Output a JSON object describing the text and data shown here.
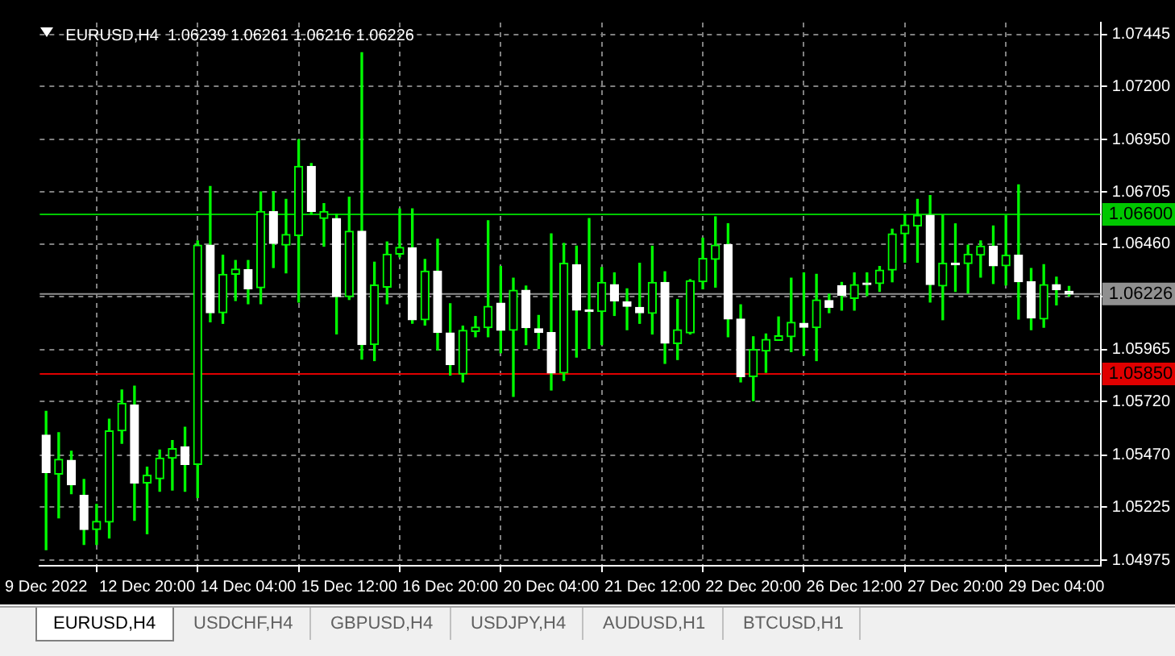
{
  "chart_data": {
    "type": "candlestick",
    "title": "EURUSD,H4  1.06239 1.06261 1.06216 1.06226",
    "categories": [
      "9 Dec 2022",
      null,
      null,
      null,
      null,
      null,
      null,
      null,
      "12 Dec 20:00",
      null,
      null,
      null,
      null,
      null,
      null,
      null,
      "14 Dec 04:00",
      null,
      null,
      null,
      null,
      null,
      null,
      null,
      "15 Dec 12:00",
      null,
      null,
      null,
      null,
      null,
      null,
      null,
      "16 Dec 20:00",
      null,
      null,
      null,
      null,
      null,
      null,
      null,
      "20 Dec 04:00",
      null,
      null,
      null,
      null,
      null,
      null,
      null,
      "21 Dec 12:00",
      null,
      null,
      null,
      null,
      null,
      null,
      null,
      "22 Dec 20:00",
      null,
      null,
      null,
      null,
      null,
      null,
      null,
      "26 Dec 12:00",
      null,
      null,
      null,
      null,
      null,
      null,
      null,
      "27 Dec 20:00",
      null,
      null,
      null,
      null,
      null,
      null,
      null,
      "29 Dec 04:00",
      null
    ],
    "ohlc": [
      [
        1.05563,
        1.05675,
        1.05025,
        1.05388
      ],
      [
        1.0538,
        1.05575,
        1.05175,
        1.0545
      ],
      [
        1.05445,
        1.05488,
        1.05288,
        1.0533
      ],
      [
        1.0528,
        1.05355,
        1.0505,
        1.0512
      ],
      [
        1.0512,
        1.05238,
        1.0505,
        1.05158
      ],
      [
        1.05155,
        1.05638,
        1.0508,
        1.05583
      ],
      [
        1.05583,
        1.05775,
        1.05525,
        1.05713
      ],
      [
        1.05705,
        1.05793,
        1.05163,
        1.05338
      ],
      [
        1.05338,
        1.05413,
        1.051,
        1.05375
      ],
      [
        1.05358,
        1.05493,
        1.053,
        1.05455
      ],
      [
        1.05455,
        1.05538,
        1.05305,
        1.055
      ],
      [
        1.05508,
        1.056,
        1.053,
        1.05425
      ],
      [
        1.05425,
        1.06475,
        1.0527,
        1.06455
      ],
      [
        1.06455,
        1.0673,
        1.06095,
        1.06138
      ],
      [
        1.06138,
        1.06408,
        1.06088,
        1.06318
      ],
      [
        1.06318,
        1.06383,
        1.06195,
        1.06343
      ],
      [
        1.0634,
        1.06383,
        1.0618,
        1.0625
      ],
      [
        1.06255,
        1.06705,
        1.0618,
        1.06613
      ],
      [
        1.06613,
        1.06705,
        1.0635,
        1.06463
      ],
      [
        1.06455,
        1.0667,
        1.06325,
        1.06505
      ],
      [
        1.065,
        1.0695,
        1.06188,
        1.06825
      ],
      [
        1.06825,
        1.06838,
        1.066,
        1.06613
      ],
      [
        1.0658,
        1.0665,
        1.0645,
        1.06613
      ],
      [
        1.0658,
        1.066,
        1.06038,
        1.06213
      ],
      [
        1.06213,
        1.0668,
        1.062,
        1.0652
      ],
      [
        1.0652,
        1.07358,
        1.0592,
        1.05988
      ],
      [
        1.05988,
        1.06375,
        1.05913,
        1.06268
      ],
      [
        1.06258,
        1.0647,
        1.0618,
        1.06413
      ],
      [
        1.06413,
        1.06625,
        1.064,
        1.06445
      ],
      [
        1.06443,
        1.06625,
        1.06088,
        1.06105
      ],
      [
        1.06105,
        1.06388,
        1.0608,
        1.06333
      ],
      [
        1.06333,
        1.06483,
        1.05963,
        1.06045
      ],
      [
        1.06043,
        1.0618,
        1.05845,
        1.05895
      ],
      [
        1.0585,
        1.06075,
        1.05813,
        1.06055
      ],
      [
        1.0605,
        1.0612,
        1.06025,
        1.0607
      ],
      [
        1.06068,
        1.0657,
        1.06025,
        1.06168
      ],
      [
        1.06183,
        1.06355,
        1.0595,
        1.06055
      ],
      [
        1.06055,
        1.063,
        1.05745,
        1.06243
      ],
      [
        1.06243,
        1.06263,
        1.05988,
        1.06068
      ],
      [
        1.06063,
        1.06125,
        1.0597,
        1.06045
      ],
      [
        1.06045,
        1.06508,
        1.05775,
        1.05855
      ],
      [
        1.05855,
        1.06463,
        1.0582,
        1.0637
      ],
      [
        1.06363,
        1.0645,
        1.0593,
        1.0615
      ],
      [
        1.0615,
        1.0658,
        1.0597,
        1.06143
      ],
      [
        1.06143,
        1.0635,
        1.05988,
        1.0628
      ],
      [
        1.0627,
        1.06325,
        1.06125,
        1.06193
      ],
      [
        1.06188,
        1.0625,
        1.06058,
        1.06168
      ],
      [
        1.06163,
        1.0637,
        1.06088,
        1.06138
      ],
      [
        1.06135,
        1.0645,
        1.06038,
        1.0628
      ],
      [
        1.0628,
        1.0633,
        1.059,
        1.05995
      ],
      [
        1.05993,
        1.062,
        1.05918,
        1.06058
      ],
      [
        1.06043,
        1.06293,
        1.06038,
        1.06288
      ],
      [
        1.06283,
        1.06488,
        1.0625,
        1.06393
      ],
      [
        1.06388,
        1.06588,
        1.06258,
        1.06455
      ],
      [
        1.06458,
        1.06555,
        1.06025,
        1.06108
      ],
      [
        1.06108,
        1.06175,
        1.05813,
        1.05838
      ],
      [
        1.05838,
        1.06025,
        1.05725,
        1.05965
      ],
      [
        1.05958,
        1.06038,
        1.05858,
        1.06013
      ],
      [
        1.06008,
        1.06118,
        1.06008,
        1.0603
      ],
      [
        1.06025,
        1.063,
        1.05955,
        1.06093
      ],
      [
        1.06088,
        1.06325,
        1.05938,
        1.0607
      ],
      [
        1.06068,
        1.06318,
        1.05913,
        1.06198
      ],
      [
        1.06195,
        1.06225,
        1.06138,
        1.06163
      ],
      [
        1.06265,
        1.0628,
        1.0615,
        1.0622
      ],
      [
        1.06205,
        1.06325,
        1.0615,
        1.0627
      ],
      [
        1.06275,
        1.06325,
        1.06218,
        1.0627
      ],
      [
        1.06275,
        1.06355,
        1.06238,
        1.06338
      ],
      [
        1.06338,
        1.0653,
        1.06283,
        1.06508
      ],
      [
        1.06508,
        1.06595,
        1.06375,
        1.0655
      ],
      [
        1.06545,
        1.0667,
        1.06375,
        1.06595
      ],
      [
        1.06595,
        1.06688,
        1.06188,
        1.0627
      ],
      [
        1.06263,
        1.06595,
        1.06105,
        1.0637
      ],
      [
        1.0637,
        1.06555,
        1.06238,
        1.06363
      ],
      [
        1.06368,
        1.06455,
        1.0623,
        1.06413
      ],
      [
        1.06408,
        1.06475,
        1.06305,
        1.0645
      ],
      [
        1.0645,
        1.06545,
        1.06275,
        1.06358
      ],
      [
        1.06358,
        1.06593,
        1.06268,
        1.06408
      ],
      [
        1.06408,
        1.06738,
        1.06108,
        1.06283
      ],
      [
        1.06283,
        1.06345,
        1.06058,
        1.06113
      ],
      [
        1.06108,
        1.06363,
        1.0607,
        1.0627
      ],
      [
        1.0627,
        1.06305,
        1.06175,
        1.06245
      ],
      [
        1.06239,
        1.06261,
        1.06216,
        1.06226
      ]
    ],
    "color": "#00ff00",
    "colors": [
      "#ffffff",
      "#00ff00",
      "#ffffff",
      "#ffffff",
      "#00ff00",
      "#00ff00",
      "#00ff00",
      "#ffffff",
      "#00ff00",
      "#00ff00",
      "#00ff00",
      "#ffffff",
      "#00ff00",
      "#ffffff",
      "#00ff00",
      "#00ff00",
      "#ffffff",
      "#00ff00",
      "#ffffff",
      "#00ff00",
      "#00ff00",
      "#ffffff",
      "#00ff00",
      "#ffffff",
      "#00ff00",
      "#ffffff",
      "#00ff00",
      "#00ff00",
      "#00ff00",
      "#ffffff",
      "#00ff00",
      "#ffffff",
      "#ffffff",
      "#00ff00",
      "#00ff00",
      "#00ff00",
      "#ffffff",
      "#00ff00",
      "#ffffff",
      "#ffffff",
      "#ffffff",
      "#00ff00",
      "#ffffff",
      "#ffffff",
      "#00ff00",
      "#ffffff",
      "#ffffff",
      "#ffffff",
      "#00ff00",
      "#ffffff",
      "#00ff00",
      "#00ff00",
      "#00ff00",
      "#00ff00",
      "#ffffff",
      "#ffffff",
      "#00ff00",
      "#00ff00",
      "#00ff00",
      "#00ff00",
      "#ffffff",
      "#00ff00",
      "#ffffff",
      "#ffffff",
      "#00ff00",
      "#ffffff",
      "#00ff00",
      "#00ff00",
      "#00ff00",
      "#00ff00",
      "#ffffff",
      "#00ff00",
      "#ffffff",
      "#00ff00",
      "#00ff00",
      "#ffffff",
      "#00ff00",
      "#ffffff",
      "#ffffff",
      "#00ff00",
      "#ffffff",
      "#ffffff"
    ],
    "ylim": [
      1.0495,
      1.075
    ],
    "yticks": [
      {
        "value": 1.07445,
        "label": "1.07445"
      },
      {
        "value": 1.072,
        "label": "1.07200"
      },
      {
        "value": 1.0695,
        "label": "1.06950"
      },
      {
        "value": 1.06705,
        "label": "1.06705"
      },
      {
        "value": 1.0646,
        "label": "1.06460"
      },
      {
        "value": 1.06215,
        "label": null
      },
      {
        "value": 1.05965,
        "label": "1.05965"
      },
      {
        "value": 1.0572,
        "label": "1.05720"
      },
      {
        "value": 1.0547,
        "label": "1.05470"
      },
      {
        "value": 1.05225,
        "label": "1.05225"
      },
      {
        "value": 1.04975,
        "label": "1.04975"
      }
    ],
    "grid": true,
    "ref_lines": [
      {
        "axis": "y",
        "value": 1.066,
        "label": "1.06600",
        "color": "#00c800"
      },
      {
        "axis": "y",
        "value": 1.0585,
        "label": "1.05850",
        "color": "#e00000"
      },
      {
        "axis": "y",
        "value": 1.06226,
        "label": "1.06226",
        "color": "#909090"
      }
    ],
    "annotations": [
      "EURUSD,H4",
      "USDCHF,H4",
      "GBPUSD,H4",
      "USDJPY,H4",
      "AUDUSD,H1",
      "BTCUSD,H1"
    ]
  }
}
